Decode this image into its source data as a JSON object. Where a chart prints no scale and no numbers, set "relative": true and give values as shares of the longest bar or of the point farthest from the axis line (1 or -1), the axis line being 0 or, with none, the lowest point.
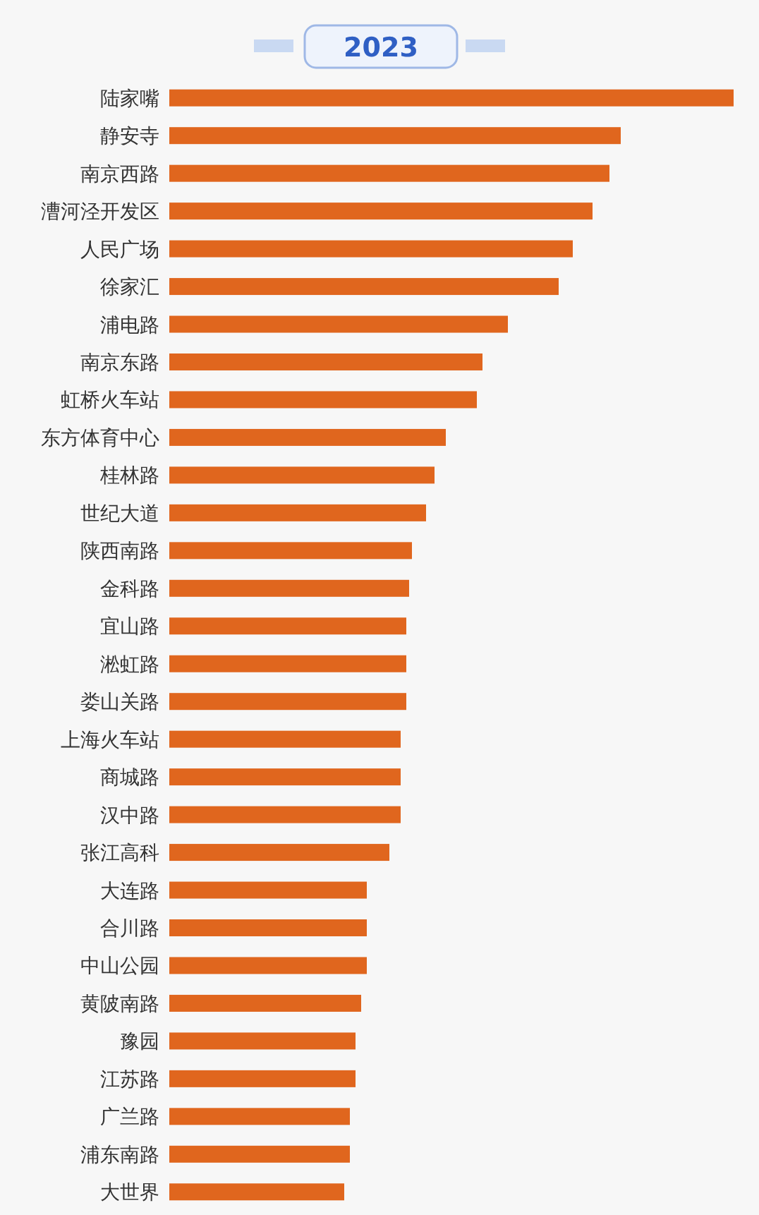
{
  "chart_data": {
    "type": "bar",
    "orientation": "horizontal",
    "relative": true,
    "title": "2023",
    "color": "#e0661e",
    "categories": [
      "陆家嘴",
      "静安寺",
      "南京西路",
      "漕河泾开发区",
      "人民广场",
      "徐家汇",
      "浦电路",
      "南京东路",
      "虹桥火车站",
      "东方体育中心",
      "桂林路",
      "世纪大道",
      "陕西南路",
      "金科路",
      "宜山路",
      "淞虹路",
      "娄山关路",
      "上海火车站",
      "商城路",
      "汉中路",
      "张江高科",
      "大连路",
      "合川路",
      "中山公园",
      "黄陂南路",
      "豫园",
      "江苏路",
      "广兰路",
      "浦东南路",
      "大世界"
    ],
    "values": [
      1,
      0.8,
      0.78,
      0.75,
      0.715,
      0.69,
      0.6,
      0.555,
      0.545,
      0.49,
      0.47,
      0.455,
      0.43,
      0.425,
      0.42,
      0.42,
      0.42,
      0.41,
      0.41,
      0.41,
      0.39,
      0.35,
      0.35,
      0.35,
      0.34,
      0.33,
      0.33,
      0.32,
      0.32,
      0.31
    ]
  }
}
